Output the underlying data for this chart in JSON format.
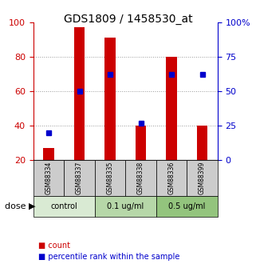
{
  "title": "GDS1809 / 1458530_at",
  "samples": [
    "GSM88334",
    "GSM88337",
    "GSM88335",
    "GSM88338",
    "GSM88336",
    "GSM88399"
  ],
  "red_values": [
    27,
    97,
    91,
    40,
    80,
    40
  ],
  "blue_values_pct": [
    20,
    50,
    62,
    27,
    62,
    62
  ],
  "red_bar_base": 20,
  "red_color": "#cc0000",
  "blue_color": "#0000cc",
  "ylim_left": [
    20,
    100
  ],
  "ylim_right": [
    0,
    100
  ],
  "yticks_left": [
    20,
    40,
    60,
    80,
    100
  ],
  "yticks_right": [
    0,
    25,
    50,
    75,
    100
  ],
  "ytick_labels_right": [
    "0",
    "25",
    "50",
    "75",
    "100%"
  ],
  "groups": [
    {
      "label": "control",
      "samples": [
        "GSM88334",
        "GSM88337"
      ],
      "color": "#d9ead3"
    },
    {
      "label": "0.1 ug/ml",
      "samples": [
        "GSM88335",
        "GSM88338"
      ],
      "color": "#b6d7a8"
    },
    {
      "label": "0.5 ug/ml",
      "samples": [
        "GSM88336",
        "GSM88399"
      ],
      "color": "#93c47d"
    }
  ],
  "dose_label": "dose",
  "legend_count": "count",
  "legend_pct": "percentile rank within the sample",
  "grid_color": "#999999",
  "bg_plot": "#ffffff",
  "sample_box_color": "#cccccc",
  "sample_text_color": "#000000",
  "title_color": "#000000",
  "left_axis_color": "#cc0000",
  "right_axis_color": "#0000cc"
}
